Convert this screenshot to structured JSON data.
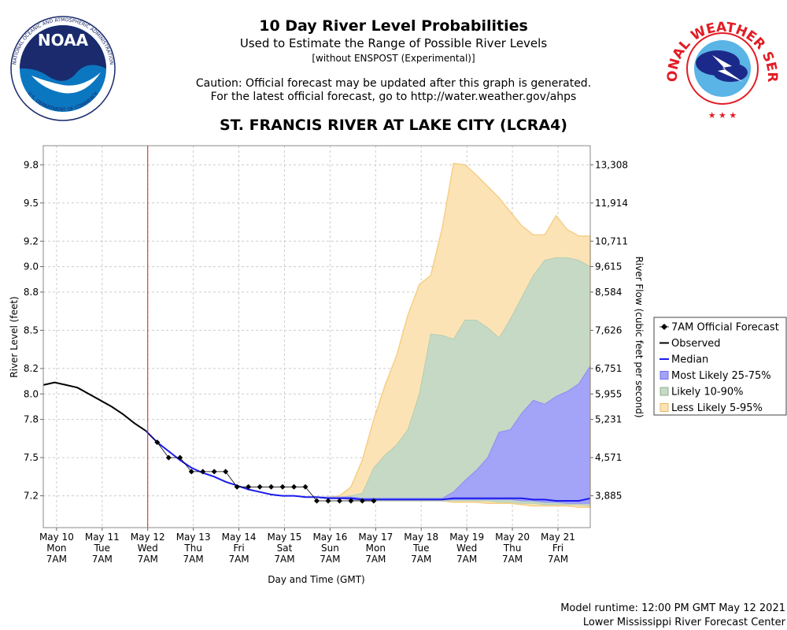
{
  "header": {
    "title": "10 Day River Level Probabilities",
    "subtitle": "Used to Estimate the Range of Possible River Levels",
    "subnote": "[without ENSPOST (Experimental)]",
    "caution_line1": "Caution: Official forecast may be updated after this graph is generated.",
    "caution_line2": "For the latest official forecast, go to http://water.weather.gov/ahps",
    "station": "ST. FRANCIS RIVER AT LAKE CITY (LCRA4)"
  },
  "logos": {
    "noaa_label": "NOAA",
    "noaa_ring_top": "NATIONAL OCEANIC AND ATMOSPHERIC ADMINISTRATION",
    "noaa_ring_bottom": "U.S. DEPARTMENT OF COMMERCE",
    "nws_ring": "NATIONAL WEATHER SERVICE"
  },
  "footer": {
    "runtime": "Model runtime: 12:00 PM GMT May 12 2021",
    "center": "Lower Mississippi River Forecast Center"
  },
  "colors": {
    "observed": "#000000",
    "median": "#1a1aee",
    "band_25_75": "#a3a3f7",
    "band_10_90": "#c6d9c5",
    "band_5_95": "#fce3b6",
    "current_time_line": "#cc2222"
  },
  "chart_data": {
    "type": "line",
    "xlabel": "Day and Time (GMT)",
    "ylabel": "River Level (feet)",
    "y2label": "River Flow (cubic feet per second)",
    "ylim": [
      6.95,
      9.95
    ],
    "y_ticks": [
      "9.8",
      "9.5",
      "9.2",
      "9.0",
      "8.8",
      "8.5",
      "8.2",
      "8.0",
      "7.8",
      "7.5",
      "7.2"
    ],
    "y_tick_values": [
      9.8,
      9.5,
      9.2,
      9.0,
      8.8,
      8.5,
      8.2,
      8.0,
      7.8,
      7.5,
      7.2
    ],
    "y2_ticks": [
      "13,308",
      "11,914",
      "10,711",
      "9,615",
      "8,584",
      "7,626",
      "6,751",
      "5,955",
      "5,231",
      "4,571",
      "3,885"
    ],
    "x_range": [
      "2021-05-10 00:00",
      "2021-05-22 00:00"
    ],
    "x_ticks": [
      {
        "day": "May 10",
        "weekday": "Mon",
        "time": "7AM",
        "x": "2021-05-10 07:00"
      },
      {
        "day": "May 11",
        "weekday": "Tue",
        "time": "7AM",
        "x": "2021-05-11 07:00"
      },
      {
        "day": "May 12",
        "weekday": "Wed",
        "time": "7AM",
        "x": "2021-05-12 07:00"
      },
      {
        "day": "May 13",
        "weekday": "Thu",
        "time": "7AM",
        "x": "2021-05-13 07:00"
      },
      {
        "day": "May 14",
        "weekday": "Fri",
        "time": "7AM",
        "x": "2021-05-14 07:00"
      },
      {
        "day": "May 15",
        "weekday": "Sat",
        "time": "7AM",
        "x": "2021-05-15 07:00"
      },
      {
        "day": "May 16",
        "weekday": "Sun",
        "time": "7AM",
        "x": "2021-05-16 07:00"
      },
      {
        "day": "May 17",
        "weekday": "Mon",
        "time": "7AM",
        "x": "2021-05-17 07:00"
      },
      {
        "day": "May 18",
        "weekday": "Tue",
        "time": "7AM",
        "x": "2021-05-18 07:00"
      },
      {
        "day": "May 19",
        "weekday": "Wed",
        "time": "7AM",
        "x": "2021-05-19 07:00"
      },
      {
        "day": "May 20",
        "weekday": "Thu",
        "time": "7AM",
        "x": "2021-05-20 07:00"
      },
      {
        "day": "May 21",
        "weekday": "Fri",
        "time": "7AM",
        "x": "2021-05-21 07:00"
      }
    ],
    "current_time": "2021-05-12 07:00",
    "grid": true,
    "legend_position": "right",
    "legend": [
      "7AM Official Forecast",
      "Observed",
      "Median",
      "Most Likely 25-75%",
      "Likely 10-90%",
      "Less Likely 5-95%"
    ],
    "observed": {
      "x": [
        "2021-05-10 00:00",
        "2021-05-10 06:00",
        "2021-05-10 12:00",
        "2021-05-10 18:00",
        "2021-05-11 00:00",
        "2021-05-11 06:00",
        "2021-05-11 12:00",
        "2021-05-11 18:00",
        "2021-05-12 00:00",
        "2021-05-12 06:00"
      ],
      "y": [
        8.07,
        8.09,
        8.07,
        8.05,
        8.0,
        7.95,
        7.9,
        7.84,
        7.77,
        7.71
      ]
    },
    "official_forecast": {
      "x": [
        "2021-05-12 06:00",
        "2021-05-12 12:00",
        "2021-05-12 18:00",
        "2021-05-13 00:00",
        "2021-05-13 06:00",
        "2021-05-13 12:00",
        "2021-05-13 18:00",
        "2021-05-14 00:00",
        "2021-05-14 06:00",
        "2021-05-14 12:00",
        "2021-05-14 18:00",
        "2021-05-15 00:00",
        "2021-05-15 06:00",
        "2021-05-15 12:00",
        "2021-05-15 18:00",
        "2021-05-16 00:00",
        "2021-05-16 06:00",
        "2021-05-16 12:00",
        "2021-05-16 18:00",
        "2021-05-17 00:00",
        "2021-05-17 06:00"
      ],
      "y": [
        7.71,
        7.62,
        7.5,
        7.5,
        7.39,
        7.39,
        7.39,
        7.39,
        7.27,
        7.27,
        7.27,
        7.27,
        7.27,
        7.27,
        7.27,
        7.16,
        7.16,
        7.16,
        7.16,
        7.16,
        7.16
      ]
    },
    "probabilistic": {
      "x": [
        "2021-05-12 06:00",
        "2021-05-12 12:00",
        "2021-05-12 18:00",
        "2021-05-13 00:00",
        "2021-05-13 06:00",
        "2021-05-13 12:00",
        "2021-05-13 18:00",
        "2021-05-14 00:00",
        "2021-05-14 06:00",
        "2021-05-14 12:00",
        "2021-05-14 18:00",
        "2021-05-15 00:00",
        "2021-05-15 06:00",
        "2021-05-15 12:00",
        "2021-05-15 18:00",
        "2021-05-16 00:00",
        "2021-05-16 06:00",
        "2021-05-16 12:00",
        "2021-05-16 18:00",
        "2021-05-17 00:00",
        "2021-05-17 06:00",
        "2021-05-17 12:00",
        "2021-05-17 18:00",
        "2021-05-18 00:00",
        "2021-05-18 06:00",
        "2021-05-18 12:00",
        "2021-05-18 18:00",
        "2021-05-19 00:00",
        "2021-05-19 06:00",
        "2021-05-19 12:00",
        "2021-05-19 18:00",
        "2021-05-20 00:00",
        "2021-05-20 06:00",
        "2021-05-20 12:00",
        "2021-05-20 18:00",
        "2021-05-21 00:00",
        "2021-05-21 06:00",
        "2021-05-21 12:00",
        "2021-05-21 18:00",
        "2021-05-22 00:00"
      ],
      "median": [
        7.71,
        7.62,
        7.55,
        7.48,
        7.42,
        7.38,
        7.35,
        7.31,
        7.28,
        7.25,
        7.23,
        7.21,
        7.2,
        7.2,
        7.19,
        7.19,
        7.18,
        7.18,
        7.18,
        7.17,
        7.17,
        7.17,
        7.17,
        7.17,
        7.17,
        7.17,
        7.17,
        7.18,
        7.18,
        7.18,
        7.18,
        7.18,
        7.18,
        7.18,
        7.17,
        7.17,
        7.16,
        7.16,
        7.16,
        7.18
      ],
      "p25": [
        7.71,
        7.62,
        7.55,
        7.48,
        7.42,
        7.38,
        7.35,
        7.31,
        7.28,
        7.25,
        7.23,
        7.21,
        7.2,
        7.2,
        7.19,
        7.19,
        7.18,
        7.18,
        7.17,
        7.17,
        7.17,
        7.17,
        7.17,
        7.17,
        7.17,
        7.17,
        7.17,
        7.17,
        7.17,
        7.17,
        7.17,
        7.17,
        7.17,
        7.16,
        7.16,
        7.15,
        7.15,
        7.14,
        7.14,
        7.14
      ],
      "p75": [
        7.71,
        7.62,
        7.55,
        7.48,
        7.42,
        7.38,
        7.35,
        7.31,
        7.28,
        7.25,
        7.23,
        7.21,
        7.2,
        7.2,
        7.19,
        7.19,
        7.19,
        7.19,
        7.19,
        7.18,
        7.18,
        7.18,
        7.18,
        7.18,
        7.18,
        7.18,
        7.18,
        7.23,
        7.32,
        7.4,
        7.5,
        7.7,
        7.72,
        7.85,
        7.95,
        7.92,
        7.98,
        8.02,
        8.08,
        8.22
      ],
      "p10": [
        7.71,
        7.62,
        7.55,
        7.48,
        7.42,
        7.38,
        7.35,
        7.31,
        7.28,
        7.25,
        7.23,
        7.21,
        7.2,
        7.2,
        7.19,
        7.19,
        7.18,
        7.18,
        7.17,
        7.16,
        7.16,
        7.16,
        7.16,
        7.16,
        7.16,
        7.16,
        7.16,
        7.16,
        7.16,
        7.16,
        7.16,
        7.15,
        7.15,
        7.14,
        7.14,
        7.13,
        7.13,
        7.13,
        7.13,
        7.12
      ],
      "p90": [
        7.71,
        7.62,
        7.55,
        7.48,
        7.42,
        7.38,
        7.35,
        7.31,
        7.28,
        7.25,
        7.23,
        7.21,
        7.2,
        7.2,
        7.19,
        7.19,
        7.19,
        7.19,
        7.2,
        7.22,
        7.42,
        7.52,
        7.6,
        7.72,
        8.0,
        8.47,
        8.46,
        8.43,
        8.58,
        8.58,
        8.52,
        8.44,
        8.59,
        8.76,
        8.93,
        9.05,
        9.07,
        9.07,
        9.05,
        9.0
      ],
      "p5": [
        7.71,
        7.62,
        7.55,
        7.48,
        7.42,
        7.38,
        7.35,
        7.31,
        7.28,
        7.25,
        7.23,
        7.21,
        7.2,
        7.2,
        7.19,
        7.19,
        7.18,
        7.18,
        7.17,
        7.16,
        7.16,
        7.16,
        7.16,
        7.16,
        7.16,
        7.16,
        7.16,
        7.15,
        7.15,
        7.15,
        7.14,
        7.14,
        7.14,
        7.13,
        7.12,
        7.12,
        7.12,
        7.12,
        7.11,
        7.11
      ],
      "p95": [
        7.71,
        7.62,
        7.55,
        7.48,
        7.42,
        7.38,
        7.35,
        7.31,
        7.28,
        7.25,
        7.23,
        7.21,
        7.2,
        7.2,
        7.19,
        7.19,
        7.19,
        7.2,
        7.27,
        7.48,
        7.8,
        8.07,
        8.3,
        8.62,
        8.86,
        8.93,
        9.3,
        9.81,
        9.8,
        9.72,
        9.63,
        9.54,
        9.43,
        9.32,
        9.25,
        9.25,
        9.4,
        9.29,
        9.24,
        9.24
      ]
    }
  }
}
